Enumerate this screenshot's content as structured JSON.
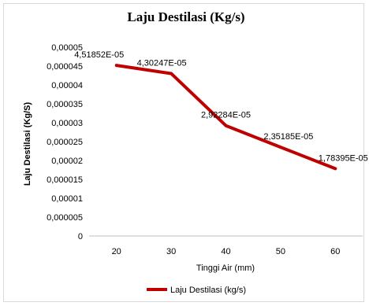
{
  "chart_data": {
    "type": "line",
    "title": "Laju Destilasi (Kg/s)",
    "xlabel": "Tinggi Air (mm)",
    "ylabel": "Laju Destilasi (Kg/S)",
    "x": [
      20,
      30,
      40,
      50,
      60
    ],
    "x_tick_labels": [
      "20",
      "30",
      "40",
      "50",
      "60"
    ],
    "y_tick_labels": [
      "0",
      "0,000005",
      "0,00001",
      "0,000015",
      "0,00002",
      "0,000025",
      "0,00003",
      "0,000035",
      "0,00004",
      "0,000045",
      "0,00005"
    ],
    "ylim": [
      0,
      5e-05
    ],
    "ytick_step": 5e-06,
    "series": [
      {
        "name": "Laju Destilasi (kg/s)",
        "color": "#c00000",
        "values": [
          4.51852e-05,
          4.30247e-05,
          2.92284e-05,
          2.35185e-05,
          1.78395e-05
        ],
        "data_labels": [
          "4,51852E-05",
          "4,30247E-05",
          "2,92284E-05",
          "2,35185E-05",
          "1,78395E-05"
        ]
      }
    ],
    "grid": false,
    "legend_position": "bottom"
  }
}
